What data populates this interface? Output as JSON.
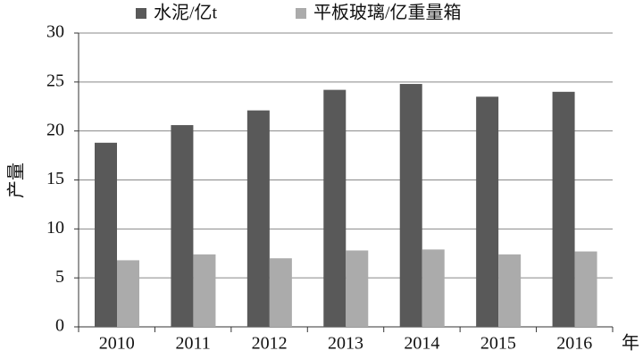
{
  "chart_data": {
    "type": "bar",
    "categories": [
      "2010",
      "2011",
      "2012",
      "2013",
      "2014",
      "2015",
      "2016"
    ],
    "series": [
      {
        "name": "水泥/亿t",
        "color": "#595959",
        "values": [
          18.8,
          20.6,
          22.1,
          24.2,
          24.8,
          23.5,
          24.0
        ]
      },
      {
        "name": "平板玻璃/亿重量箱",
        "color": "#ababab",
        "values": [
          6.8,
          7.4,
          7.0,
          7.8,
          7.9,
          7.4,
          7.7
        ]
      }
    ],
    "x_label": "年",
    "y_label": "产量",
    "ylim": [
      0,
      30
    ],
    "yticks": [
      0,
      5,
      10,
      15,
      20,
      25,
      30
    ],
    "grid": true,
    "legend": "top"
  }
}
